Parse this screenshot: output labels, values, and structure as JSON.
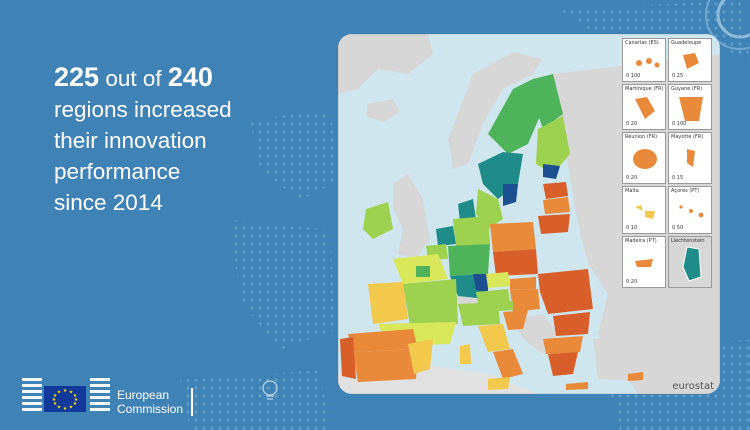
{
  "headline": {
    "number1": "225",
    "text1": " out of ",
    "number2": "240",
    "line2": "regions increased",
    "line3": "their innovation",
    "line4": "performance",
    "line5": "since 2014"
  },
  "map": {
    "credit": "eurostat",
    "insets": [
      {
        "label": "Canarias (ES)",
        "scale": "0   100"
      },
      {
        "label": "Guadeloupe",
        "scale": "0  25"
      },
      {
        "label": "Martinique (FR)",
        "scale": "0  20"
      },
      {
        "label": "Guyane (FR)",
        "scale": "0  100"
      },
      {
        "label": "Réunion (FR)",
        "scale": "0  20"
      },
      {
        "label": "Mayotte (FR)",
        "scale": "0  15"
      },
      {
        "label": "Malta",
        "scale": "0  10"
      },
      {
        "label": "Açores (PT)",
        "scale": "0  50"
      },
      {
        "label": "Madeira (PT)",
        "scale": "0  20"
      },
      {
        "label": "Liechtenstein",
        "scale": ""
      }
    ],
    "colors": {
      "sea": "#cfe6ef",
      "non_eu": "#d7d7d7",
      "strong_decline": "#d95f2a",
      "decline": "#e88a3a",
      "no_change": "#f2c94c",
      "small_increase": "#d9e85a",
      "increase": "#9ed14f",
      "strong_increase": "#4fb35c",
      "very_strong_increase": "#1f8c8a",
      "top": "#1b4f8f"
    }
  },
  "footer": {
    "org_line1": "European",
    "org_line2": "Commission",
    "logo_icon": "eu-flag-icon"
  }
}
